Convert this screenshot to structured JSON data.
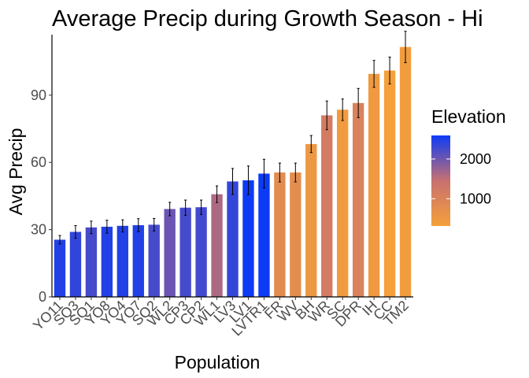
{
  "chart_data": {
    "type": "bar",
    "title": "Average Precip during Growth Season - Hi",
    "xlabel": "Population",
    "ylabel": "Avg Precip",
    "ylim": [
      0,
      117
    ],
    "yticks": [
      0,
      30,
      60,
      90
    ],
    "grid": false,
    "categories": [
      "YO11",
      "SQ3",
      "SQ1",
      "YO8",
      "YO4",
      "YO7",
      "SQ2",
      "WL2",
      "CP3",
      "CP2",
      "WL1",
      "LV3",
      "LV1",
      "LVTR1",
      "FR",
      "WV",
      "BH",
      "WR",
      "SC",
      "DPR",
      "TM2_IH",
      "CC",
      "TM2"
    ],
    "category_labels": [
      "YO11",
      "SQ3",
      "SQ1",
      "YO8",
      "YO4",
      "YO7",
      "SQ2",
      "WL2",
      "CP3",
      "CP2",
      "WL1",
      "LV3",
      "LV1",
      "LVTR1",
      "FR",
      "WV",
      "BH",
      "WR",
      "SC",
      "DPR",
      "IH",
      "CC",
      "TM2"
    ],
    "values": [
      25.5,
      29,
      31,
      31.3,
      31.7,
      32,
      32.2,
      39.2,
      39.8,
      40,
      45.8,
      51.5,
      52,
      55,
      55.5,
      55.5,
      68.2,
      81,
      83.5,
      86.5,
      99.5,
      101,
      111.5
    ],
    "error": [
      1.9,
      2.8,
      2.8,
      2.9,
      2.7,
      2.9,
      2.8,
      3.0,
      3.4,
      3.2,
      3.7,
      5.8,
      6.4,
      6.4,
      4.2,
      4.2,
      3.8,
      6.4,
      4.8,
      6.5,
      6.0,
      6.0,
      7.0
    ],
    "elevation": [
      2470,
      2373,
      2245,
      2470,
      2470,
      2470,
      2245,
      2020,
      2244,
      2266,
      1614,
      2353,
      2593,
      2593,
      787,
      749,
      511,
      1158,
      422,
      1019,
      454,
      313,
      379
    ],
    "legend": {
      "title": "Elevation",
      "position": "right",
      "labels": [
        "2000",
        "1000"
      ],
      "label_values": [
        2000,
        1000
      ],
      "range": [
        313,
        2593
      ],
      "colors": {
        "low": "#f5a03a",
        "mid": "#c77070",
        "high": "#0d3bf5"
      }
    },
    "bar_style": {
      "error_bar_color": "#000000"
    }
  }
}
